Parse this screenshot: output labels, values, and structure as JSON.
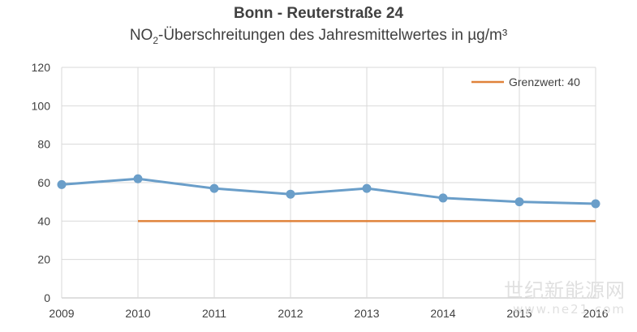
{
  "chart_data": {
    "type": "line",
    "title": "Bonn - Reuterstraße 24",
    "subtitle_prefix": "NO",
    "subtitle_sub": "2",
    "subtitle_rest": "-Überschreitungen des Jahresmittelwertes in µg/m³",
    "x": [
      "2009",
      "2010",
      "2011",
      "2012",
      "2013",
      "2014",
      "2015",
      "2016"
    ],
    "ylim": [
      0,
      120
    ],
    "yticks": [
      0,
      20,
      40,
      60,
      80,
      100,
      120
    ],
    "grid": true,
    "legend_position": "top-right",
    "series": [
      {
        "name": "",
        "values": [
          59,
          62,
          57,
          54,
          57,
          52,
          50,
          49
        ],
        "color": "#6a9ec9"
      },
      {
        "name": "Grenzwert: 40",
        "x_start": "2010",
        "x_end": "2016",
        "value": 40,
        "color": "#e0823a"
      }
    ]
  },
  "watermark": {
    "line1": "世纪新能源网",
    "line2": "www.ne21.com"
  }
}
